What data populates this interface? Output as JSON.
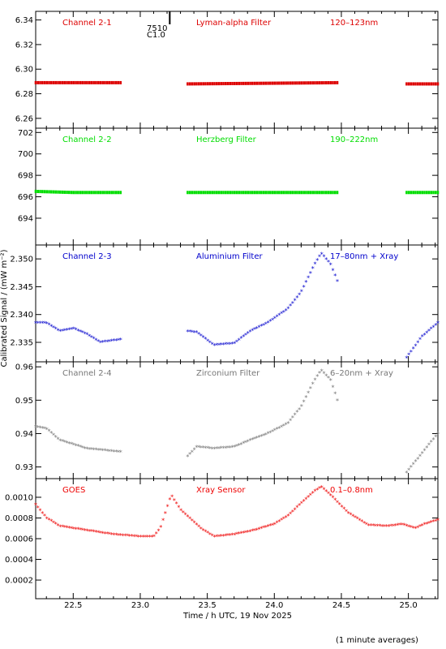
{
  "x_axis": {
    "label": "Time / h UTC, 19 Nov 2025",
    "range": [
      22.22,
      25.22
    ],
    "ticks": [
      22.5,
      23.0,
      23.5,
      24.0,
      24.5,
      25.0
    ],
    "tick_labels": [
      "22.5",
      "23.0",
      "23.5",
      "24.0",
      "24.5",
      "25.0"
    ]
  },
  "y_axis_title": "Calibrated Signal / (mW m⁻²)",
  "footnote": "(1 minute averages)",
  "flare": {
    "time": 23.22,
    "noaa_region": "7510",
    "class": "C1.0"
  },
  "colors": {
    "red": "#dd0000",
    "green": "#00dd00",
    "blue": "#0000cc",
    "gray": "#777777",
    "goes": "#ee0000"
  },
  "chart_data": [
    {
      "type": "scatter",
      "channel": "Channel 2-1",
      "filter": "Lyman-alpha Filter",
      "band": "120–123nm",
      "color": "#dd0000",
      "ylim": [
        6.252,
        6.347
      ],
      "yticks": [
        6.26,
        6.28,
        6.3,
        6.32,
        6.34
      ],
      "ytick_labels": [
        "6.26",
        "6.28",
        "6.30",
        "6.32",
        "6.34"
      ],
      "keyframes": [
        [
          22.22,
          6.289
        ],
        [
          22.85,
          6.289
        ],
        [
          23.35,
          6.288
        ],
        [
          24.47,
          6.289
        ],
        [
          24.98,
          6.288
        ],
        [
          25.22,
          6.288
        ]
      ],
      "gaps": [
        [
          22.86,
          23.34
        ],
        [
          24.48,
          24.97
        ]
      ]
    },
    {
      "type": "scatter",
      "channel": "Channel 2-2",
      "filter": "Herzberg Filter",
      "band": "190–222nm",
      "color": "#00dd00",
      "ylim": [
        691.5,
        702.4
      ],
      "yticks": [
        694,
        696,
        698,
        700,
        702
      ],
      "ytick_labels": [
        "694",
        "696",
        "698",
        "700",
        "702"
      ],
      "keyframes": [
        [
          22.22,
          696.5
        ],
        [
          22.5,
          696.4
        ],
        [
          22.85,
          696.4
        ],
        [
          23.35,
          696.4
        ],
        [
          24.47,
          696.4
        ],
        [
          24.98,
          696.4
        ],
        [
          25.22,
          696.4
        ]
      ],
      "gaps": [
        [
          22.86,
          23.34
        ],
        [
          24.48,
          24.97
        ]
      ]
    },
    {
      "type": "scatter",
      "channel": "Channel 2-3",
      "filter": "Aluminium Filter",
      "band": "17–80nm + Xray",
      "color": "#0000cc",
      "ylim": [
        2.3315,
        2.3525
      ],
      "yticks": [
        2.335,
        2.34,
        2.345,
        2.35
      ],
      "ytick_labels": [
        "2.335",
        "2.340",
        "2.345",
        "2.350"
      ],
      "keyframes": [
        [
          22.22,
          2.3385
        ],
        [
          22.3,
          2.3385
        ],
        [
          22.4,
          2.337
        ],
        [
          22.5,
          2.3375
        ],
        [
          22.6,
          2.3365
        ],
        [
          22.7,
          2.335
        ],
        [
          22.85,
          2.3355
        ],
        [
          23.35,
          2.337
        ],
        [
          23.42,
          2.3368
        ],
        [
          23.55,
          2.3345
        ],
        [
          23.7,
          2.3348
        ],
        [
          23.82,
          2.337
        ],
        [
          23.95,
          2.3385
        ],
        [
          24.1,
          2.341
        ],
        [
          24.2,
          2.344
        ],
        [
          24.3,
          2.349
        ],
        [
          24.35,
          2.351
        ],
        [
          24.42,
          2.349
        ],
        [
          24.47,
          2.346
        ],
        [
          24.98,
          2.332
        ],
        [
          25.1,
          2.336
        ],
        [
          25.22,
          2.3385
        ]
      ],
      "gaps": [
        [
          22.86,
          23.34
        ],
        [
          24.48,
          24.97
        ]
      ]
    },
    {
      "type": "scatter",
      "channel": "Channel 2-4",
      "filter": "Zirconium Filter",
      "band": "6–20nm + Xray",
      "color": "#777777",
      "ylim": [
        0.9265,
        0.9615
      ],
      "yticks": [
        0.93,
        0.94,
        0.95,
        0.96
      ],
      "ytick_labels": [
        "0.93",
        "0.94",
        "0.95",
        "0.96"
      ],
      "keyframes": [
        [
          22.22,
          0.942
        ],
        [
          22.3,
          0.9415
        ],
        [
          22.4,
          0.938
        ],
        [
          22.6,
          0.9355
        ],
        [
          22.85,
          0.9345
        ],
        [
          23.35,
          0.933
        ],
        [
          23.42,
          0.936
        ],
        [
          23.55,
          0.9355
        ],
        [
          23.7,
          0.936
        ],
        [
          23.82,
          0.938
        ],
        [
          23.95,
          0.94
        ],
        [
          24.1,
          0.943
        ],
        [
          24.2,
          0.948
        ],
        [
          24.3,
          0.956
        ],
        [
          24.35,
          0.959
        ],
        [
          24.42,
          0.956
        ],
        [
          24.47,
          0.95
        ],
        [
          24.98,
          0.928
        ],
        [
          25.1,
          0.934
        ],
        [
          25.22,
          0.94
        ]
      ],
      "gaps": [
        [
          22.86,
          23.34
        ],
        [
          24.48,
          24.97
        ]
      ]
    },
    {
      "type": "scatter",
      "channel": "GOES",
      "filter": "Xray Sensor",
      "band": "0.1–0.8nm",
      "color": "#ee0000",
      "ylim": [
        2e-05,
        0.00118
      ],
      "yticks": [
        0.0002,
        0.0004,
        0.0006,
        0.0008,
        0.001
      ],
      "ytick_labels": [
        "0.0002",
        "0.0004",
        "0.0006",
        "0.0008",
        "0.0010"
      ],
      "keyframes": [
        [
          22.22,
          0.00093
        ],
        [
          22.3,
          0.0008
        ],
        [
          22.4,
          0.00072
        ],
        [
          22.6,
          0.00068
        ],
        [
          22.8,
          0.00064
        ],
        [
          23.0,
          0.00062
        ],
        [
          23.1,
          0.00062
        ],
        [
          23.15,
          0.0007
        ],
        [
          23.2,
          0.0009
        ],
        [
          23.23,
          0.00102
        ],
        [
          23.3,
          0.00088
        ],
        [
          23.45,
          0.0007
        ],
        [
          23.55,
          0.00062
        ],
        [
          23.7,
          0.00064
        ],
        [
          23.85,
          0.00068
        ],
        [
          24.0,
          0.00074
        ],
        [
          24.1,
          0.00082
        ],
        [
          24.2,
          0.00094
        ],
        [
          24.3,
          0.00106
        ],
        [
          24.35,
          0.0011
        ],
        [
          24.42,
          0.00102
        ],
        [
          24.55,
          0.00085
        ],
        [
          24.7,
          0.00073
        ],
        [
          24.85,
          0.00072
        ],
        [
          24.95,
          0.00074
        ],
        [
          25.05,
          0.0007
        ],
        [
          25.12,
          0.00074
        ],
        [
          25.22,
          0.00078
        ]
      ],
      "gaps": []
    }
  ]
}
